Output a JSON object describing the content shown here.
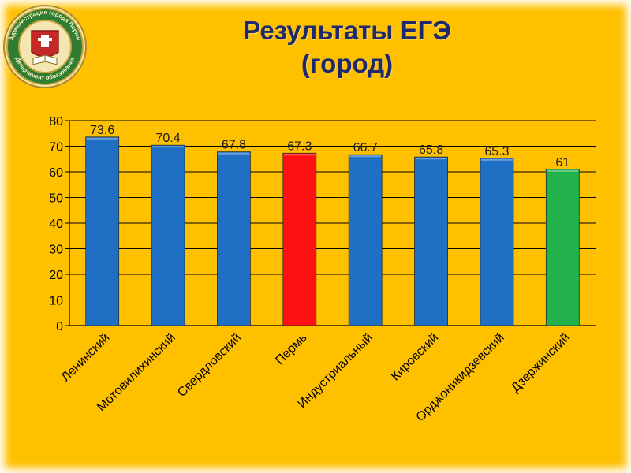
{
  "slide": {
    "title_line1": "Результаты ЕГЭ",
    "title_line2": "(город)",
    "logo": {
      "type": "seal",
      "text": "Администрация города Перми · Департамент образования"
    }
  },
  "colors": {
    "background": "#FFC000",
    "bar_default": "#1F6FC5",
    "bar_highlight": "#FF1010",
    "bar_lowest": "#22B24C",
    "title": "#1F2A6E"
  },
  "chart_data": {
    "type": "bar",
    "title": "",
    "xlabel": "",
    "ylabel": "",
    "ylim": [
      0,
      80
    ],
    "yticks": [
      0,
      10,
      20,
      30,
      40,
      50,
      60,
      70,
      80
    ],
    "grid": true,
    "legend": "none",
    "categories": [
      "Ленинский",
      "Мотовилихинский",
      "Свердловский",
      "Пермь",
      "Индустриальный",
      "Кировский",
      "Орджоникидзевский",
      "Дзержинский"
    ],
    "values": [
      73.6,
      70.4,
      67.8,
      67.3,
      66.7,
      65.8,
      65.3,
      61
    ],
    "data_labels": [
      "73.6",
      "70.4",
      "67.8",
      "67.3",
      "66.7",
      "65.8",
      "65.3",
      "61"
    ],
    "bar_colors": [
      "#1F6FC5",
      "#1F6FC5",
      "#1F6FC5",
      "#FF1010",
      "#1F6FC5",
      "#1F6FC5",
      "#1F6FC5",
      "#22B24C"
    ]
  }
}
